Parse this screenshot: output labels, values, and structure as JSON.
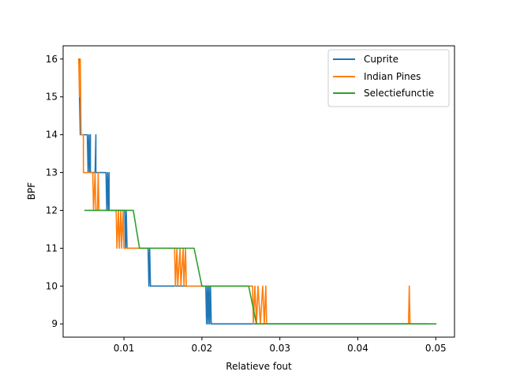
{
  "chart_data": {
    "type": "line",
    "title": "",
    "xlabel": "Relatieve fout",
    "ylabel": "BPF",
    "xlim": [
      0.0022,
      0.0524
    ],
    "ylim": [
      8.65,
      16.35
    ],
    "xticks": [
      0.01,
      0.02,
      0.03,
      0.04,
      0.05
    ],
    "xtick_labels": [
      "0.01",
      "0.02",
      "0.03",
      "0.04",
      "0.05"
    ],
    "yticks": [
      9,
      10,
      11,
      12,
      13,
      14,
      15,
      16
    ],
    "ytick_labels": [
      "9",
      "10",
      "11",
      "12",
      "13",
      "14",
      "15",
      "16"
    ],
    "grid": false,
    "legend_position": "top-right",
    "series": [
      {
        "name": "Cuprite",
        "color": "#1f77b4",
        "points": [
          [
            0.0043,
            16
          ],
          [
            0.0043,
            15
          ],
          [
            0.0044,
            14
          ],
          [
            0.0053,
            14
          ],
          [
            0.0054,
            13
          ],
          [
            0.0055,
            14
          ],
          [
            0.0056,
            13
          ],
          [
            0.0057,
            14
          ],
          [
            0.0057,
            13
          ],
          [
            0.0063,
            13
          ],
          [
            0.0064,
            14
          ],
          [
            0.0064,
            13
          ],
          [
            0.0077,
            13
          ],
          [
            0.0078,
            12
          ],
          [
            0.0079,
            13
          ],
          [
            0.008,
            12
          ],
          [
            0.0081,
            13
          ],
          [
            0.0081,
            12
          ],
          [
            0.0101,
            12
          ],
          [
            0.0102,
            11
          ],
          [
            0.0103,
            12
          ],
          [
            0.0104,
            11
          ],
          [
            0.0131,
            11
          ],
          [
            0.0132,
            10
          ],
          [
            0.0133,
            11
          ],
          [
            0.0134,
            10
          ],
          [
            0.0205,
            10
          ],
          [
            0.0206,
            9
          ],
          [
            0.0207,
            10
          ],
          [
            0.0208,
            9
          ],
          [
            0.0209,
            10
          ],
          [
            0.021,
            9
          ],
          [
            0.0211,
            10
          ],
          [
            0.0212,
            9
          ],
          [
            0.0489,
            9
          ]
        ]
      },
      {
        "name": "Indian Pines",
        "color": "#ff7f0e",
        "points": [
          [
            0.0042,
            16
          ],
          [
            0.0043,
            15
          ],
          [
            0.0044,
            16
          ],
          [
            0.0045,
            14
          ],
          [
            0.0048,
            14
          ],
          [
            0.0048,
            13
          ],
          [
            0.006,
            13
          ],
          [
            0.0061,
            12
          ],
          [
            0.0063,
            13
          ],
          [
            0.0064,
            12
          ],
          [
            0.0066,
            12
          ],
          [
            0.0067,
            13
          ],
          [
            0.0068,
            12
          ],
          [
            0.009,
            12
          ],
          [
            0.0091,
            11
          ],
          [
            0.0093,
            12
          ],
          [
            0.0094,
            11
          ],
          [
            0.0096,
            12
          ],
          [
            0.0097,
            11
          ],
          [
            0.0099,
            12
          ],
          [
            0.01,
            11
          ],
          [
            0.0165,
            11
          ],
          [
            0.0166,
            10
          ],
          [
            0.0168,
            11
          ],
          [
            0.0169,
            10
          ],
          [
            0.0172,
            11
          ],
          [
            0.0173,
            10
          ],
          [
            0.0176,
            11
          ],
          [
            0.0177,
            10
          ],
          [
            0.0179,
            11
          ],
          [
            0.018,
            10
          ],
          [
            0.0265,
            10
          ],
          [
            0.0266,
            9
          ],
          [
            0.0268,
            10
          ],
          [
            0.027,
            9
          ],
          [
            0.0272,
            10
          ],
          [
            0.0275,
            9
          ],
          [
            0.0278,
            10
          ],
          [
            0.028,
            9
          ],
          [
            0.0282,
            10
          ],
          [
            0.0283,
            9
          ],
          [
            0.0465,
            9
          ],
          [
            0.0466,
            10
          ],
          [
            0.0467,
            9
          ]
        ]
      },
      {
        "name": "Selectiefunctie",
        "color": "#2ca02c",
        "points": [
          [
            0.005,
            12
          ],
          [
            0.0112,
            12
          ],
          [
            0.012,
            11
          ],
          [
            0.019,
            11
          ],
          [
            0.02,
            10
          ],
          [
            0.026,
            10
          ],
          [
            0.027,
            9
          ],
          [
            0.05,
            9
          ]
        ]
      }
    ]
  }
}
